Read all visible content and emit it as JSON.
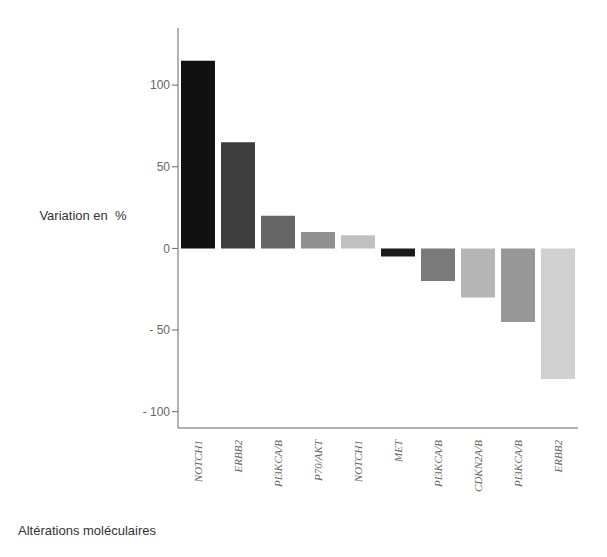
{
  "chart_data": {
    "type": "bar",
    "categories": [
      "NOTCH1",
      "ERBB2",
      "PI3KCA/B",
      "P70/AKT",
      "NOTCH1",
      "MET",
      "PI3KCA/B",
      "CDKN2A/B",
      "PI3KCA/B",
      "ERBB2"
    ],
    "values": [
      115,
      65,
      20,
      10,
      8,
      -5,
      -20,
      -30,
      -45,
      -80
    ],
    "colors": [
      "#111111",
      "#3d3d3d",
      "#666666",
      "#909090",
      "#c0c0c0",
      "#1a1a1a",
      "#7a7a7a",
      "#b5b5b5",
      "#979797",
      "#d0d0d0"
    ],
    "ylabel": "Variation en  %",
    "xlabel": "Altérations moléculaires",
    "ylim": [
      -110,
      135
    ],
    "yticks": [
      {
        "value": -100,
        "label": "- 100"
      },
      {
        "value": -50,
        "label": "- 50"
      },
      0,
      50,
      100
    ],
    "grid": false
  }
}
